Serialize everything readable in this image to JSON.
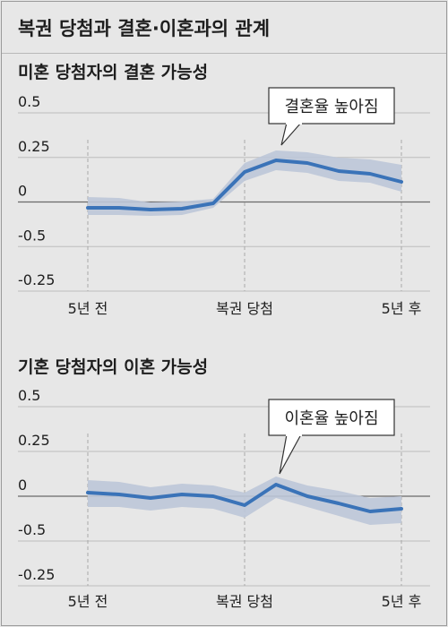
{
  "title": "복권 당첨과 결혼·이혼과의 관계",
  "chart_data": [
    {
      "type": "line",
      "title": "미혼 당첨자의 결혼 가능성",
      "x_labels": [
        "5년 전",
        "복권 당첨",
        "5년 후"
      ],
      "y_labels": [
        "0.5",
        "0.25",
        "0",
        "-0.5",
        "-0.25"
      ],
      "ylim": [
        -0.5,
        0.5
      ],
      "grid": true,
      "annotation": "결혼율 높아짐",
      "series": [
        {
          "x": [
            -5,
            -4,
            -3,
            -2,
            -1,
            0,
            1,
            2,
            3,
            4,
            5
          ],
          "values": [
            -0.03,
            -0.03,
            -0.04,
            -0.035,
            -0.005,
            0.17,
            0.235,
            0.22,
            0.175,
            0.16,
            0.115
          ],
          "lower": [
            -0.07,
            -0.07,
            -0.075,
            -0.07,
            -0.03,
            0.12,
            0.18,
            0.165,
            0.12,
            0.11,
            0.06
          ],
          "upper": [
            0.03,
            0.025,
            0.0,
            0.005,
            0.02,
            0.22,
            0.29,
            0.28,
            0.25,
            0.24,
            0.21
          ],
          "color": "#3a73b8",
          "band_color": "#bcc6d8"
        }
      ]
    },
    {
      "type": "line",
      "title": "기혼 당첨자의 이혼 가능성",
      "x_labels": [
        "5년 전",
        "복권 당첨",
        "5년 후"
      ],
      "y_labels": [
        "0.5",
        "0.25",
        "0",
        "-0.5",
        "-0.25"
      ],
      "ylim": [
        -0.5,
        0.5
      ],
      "grid": true,
      "annotation": "이혼율 높아짐",
      "series": [
        {
          "x": [
            -5,
            -4,
            -3,
            -2,
            -1,
            0,
            1,
            2,
            3,
            4,
            5
          ],
          "values": [
            0.02,
            0.01,
            -0.01,
            0.01,
            0.0,
            -0.05,
            0.065,
            0.0,
            -0.04,
            -0.085,
            -0.07
          ],
          "lower": [
            -0.06,
            -0.06,
            -0.08,
            -0.06,
            -0.07,
            -0.12,
            -0.01,
            -0.06,
            -0.11,
            -0.16,
            -0.15
          ],
          "upper": [
            0.09,
            0.08,
            0.05,
            0.07,
            0.06,
            0.02,
            0.11,
            0.06,
            0.03,
            -0.01,
            0.0
          ],
          "color": "#3a73b8",
          "band_color": "#bcc6d8"
        }
      ]
    }
  ]
}
